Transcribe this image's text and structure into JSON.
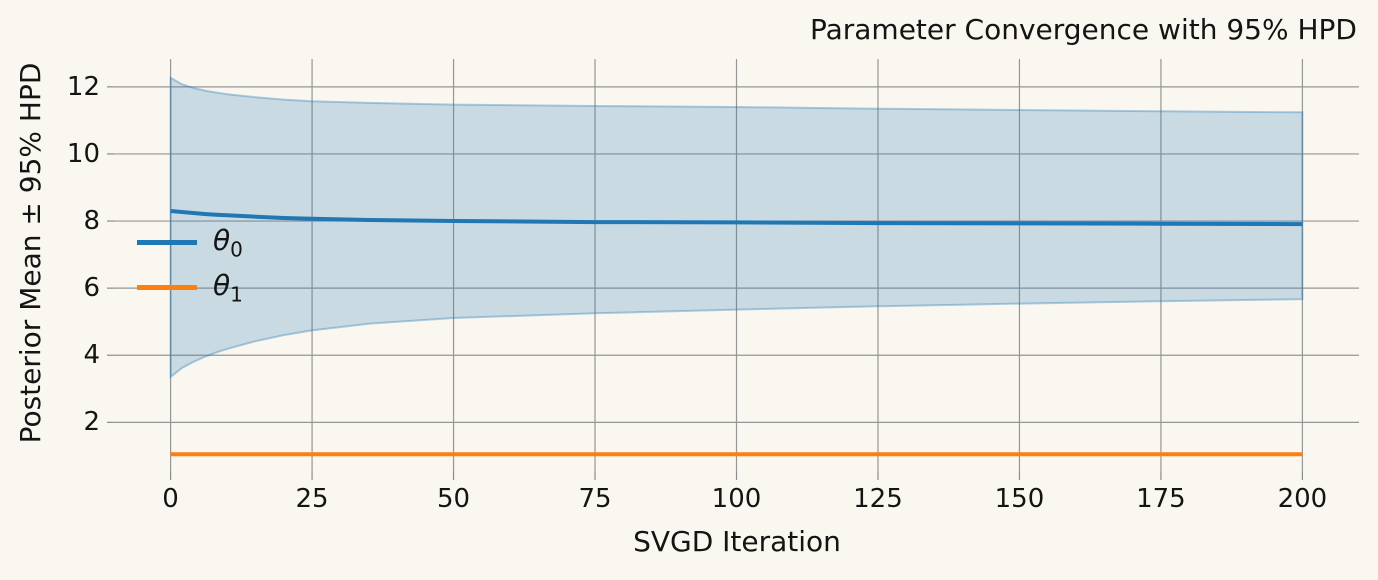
{
  "chart_data": {
    "type": "line",
    "title": "Parameter Convergence with 95% HPD",
    "xlabel": "SVGD Iteration",
    "ylabel": "Posterior Mean ± 95% HPD",
    "xlim": [
      -10,
      210
    ],
    "ylim": [
      0.49,
      12.83
    ],
    "xticks": [
      0,
      25,
      50,
      75,
      100,
      125,
      150,
      175,
      200
    ],
    "yticks": [
      2,
      4,
      6,
      8,
      10,
      12
    ],
    "grid": true,
    "legend_position": "inside-upper-left",
    "background_color": "#faf7f0",
    "grid_color": "#969696",
    "text_color": "#141414",
    "series": [
      {
        "name": "theta_0",
        "legend_symbol": "θ",
        "legend_sub": "0",
        "color": "#1f77b4",
        "band_fill_alpha": 0.22,
        "band_edge_alpha": 0.35,
        "x": [
          0,
          2,
          4,
          6,
          8,
          10,
          15,
          20,
          25,
          35,
          50,
          75,
          100,
          125,
          150,
          175,
          200
        ],
        "mean": [
          8.3,
          8.27,
          8.24,
          8.21,
          8.19,
          8.17,
          8.13,
          8.09,
          8.07,
          8.03,
          8.0,
          7.97,
          7.96,
          7.94,
          7.93,
          7.92,
          7.91
        ],
        "upper": [
          12.27,
          12.08,
          11.97,
          11.89,
          11.83,
          11.78,
          11.69,
          11.62,
          11.57,
          11.52,
          11.47,
          11.43,
          11.4,
          11.35,
          11.31,
          11.27,
          11.24
        ],
        "lower": [
          3.35,
          3.62,
          3.8,
          3.95,
          4.08,
          4.19,
          4.42,
          4.6,
          4.74,
          4.94,
          5.11,
          5.25,
          5.36,
          5.46,
          5.54,
          5.61,
          5.67
        ]
      },
      {
        "name": "theta_1",
        "legend_symbol": "θ",
        "legend_sub": "1",
        "color": "#ff7f0e",
        "x": [
          0,
          200
        ],
        "mean": [
          1.05,
          1.05
        ]
      }
    ]
  }
}
